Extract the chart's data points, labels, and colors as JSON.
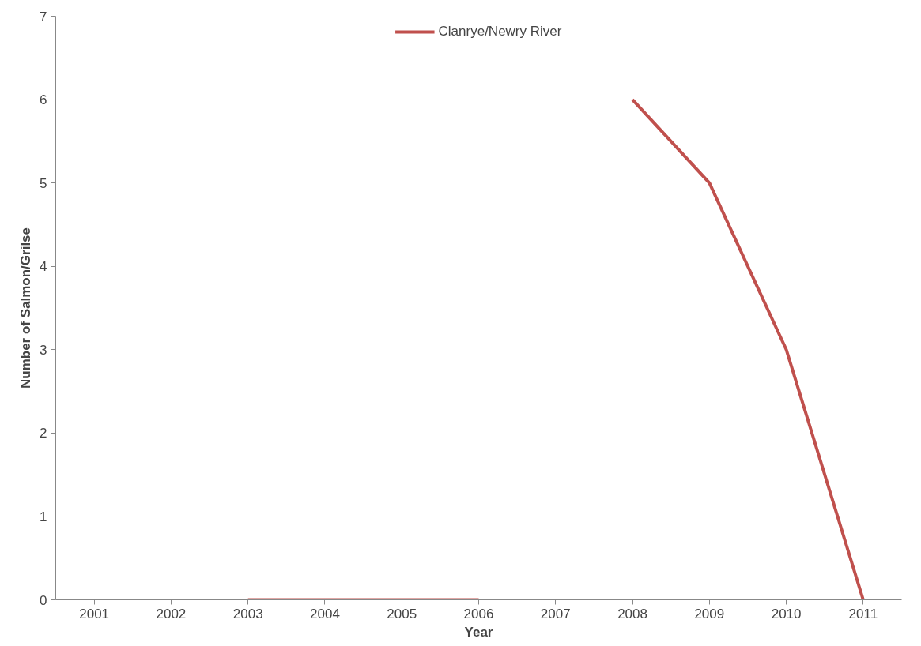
{
  "chart_data": {
    "type": "line",
    "xlabel": "Year",
    "ylabel": "Number of Salmon/Grilse",
    "categories": [
      "2001",
      "2002",
      "2003",
      "2004",
      "2005",
      "2006",
      "2007",
      "2008",
      "2009",
      "2010",
      "2011"
    ],
    "series": [
      {
        "name": "Clanrye/Newry River",
        "color": "#c0504d",
        "values": [
          null,
          null,
          0,
          0,
          0,
          0,
          null,
          6,
          5,
          3,
          0
        ]
      }
    ],
    "ylim": [
      0,
      7
    ],
    "yticks": [
      0,
      1,
      2,
      3,
      4,
      5,
      6,
      7
    ],
    "grid": false,
    "legend": "top",
    "marker": "none",
    "line_style": "solid"
  }
}
